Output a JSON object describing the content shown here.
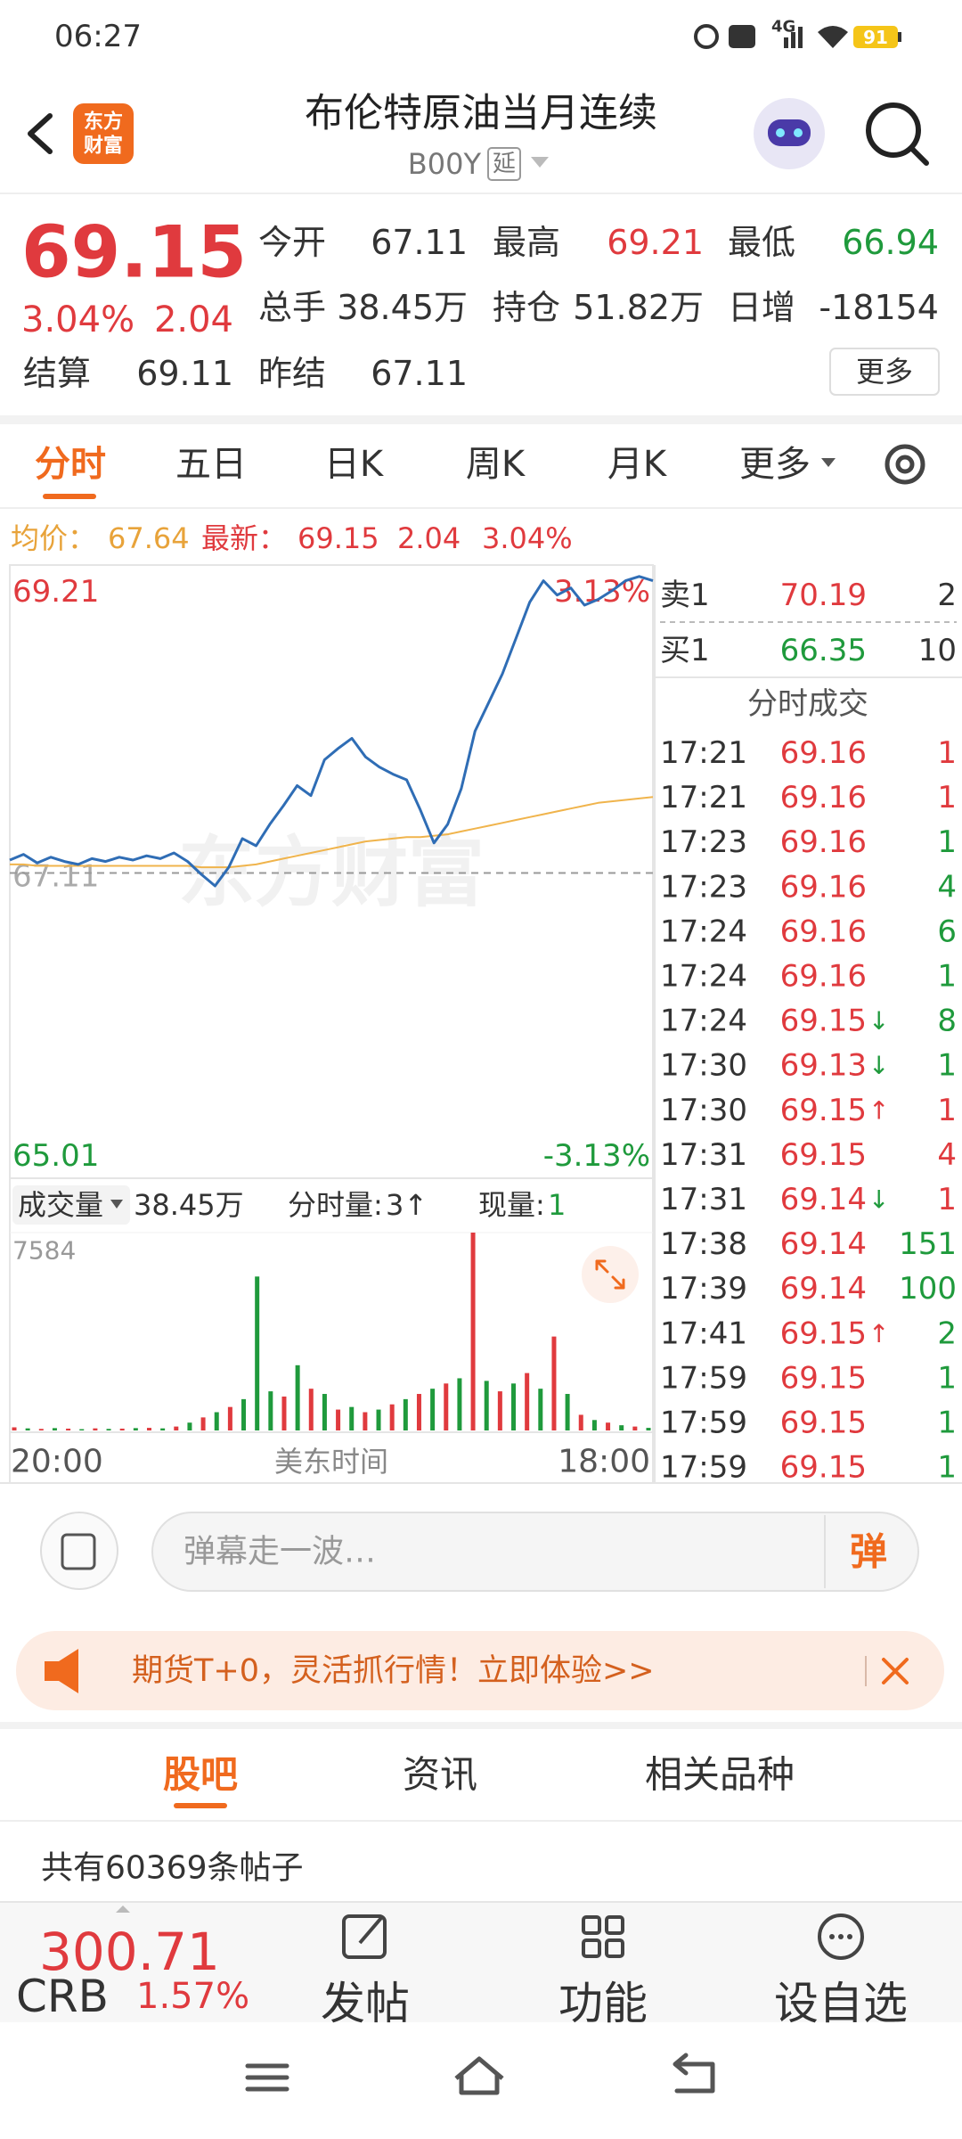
{
  "status_bar": {
    "time": "06:27",
    "network": "4G",
    "battery": "91"
  },
  "header": {
    "logo": [
      "东方",
      "财富"
    ],
    "title": "布伦特原油当月连续",
    "code": "B00Y",
    "badge": "延"
  },
  "quote": {
    "price": "69.15",
    "change_pct": "3.04%",
    "change": "2.04",
    "settle_label": "结算",
    "settle": "69.11",
    "rows": [
      [
        {
          "label": "今开",
          "value": "67.11",
          "color": "#333333"
        },
        {
          "label": "最高",
          "value": "69.21",
          "color": "#e03a3e"
        },
        {
          "label": "最低",
          "value": "66.94",
          "color": "#1f9a3c"
        }
      ],
      [
        {
          "label": "总手",
          "value": "38.45万",
          "color": "#333333"
        },
        {
          "label": "持仓",
          "value": "51.82万",
          "color": "#333333"
        },
        {
          "label": "日增",
          "value": "-18154",
          "color": "#333333"
        }
      ],
      [
        {
          "label": "昨结",
          "value": "67.11",
          "color": "#333333"
        }
      ]
    ],
    "more": "更多"
  },
  "tabs": {
    "items": [
      "分时",
      "五日",
      "日K",
      "周K",
      "月K",
      "更多"
    ],
    "active": 0
  },
  "info_line": {
    "avg_label": "均价：",
    "avg": "67.64",
    "latest_label": "最新：",
    "latest": "69.15",
    "change": "2.04",
    "change_pct": "3.04%"
  },
  "chart_data": [
    {
      "type": "line",
      "watermark": "东方财富",
      "series": [
        {
          "color": "#2f6db5",
          "values": [
            67.2,
            67.24,
            67.18,
            67.22,
            67.19,
            67.17,
            67.21,
            67.19,
            67.22,
            67.2,
            67.23,
            67.21,
            67.25,
            67.19,
            67.1,
            67.02,
            67.15,
            67.35,
            67.3,
            67.45,
            67.58,
            67.72,
            67.65,
            67.9,
            67.98,
            68.05,
            67.92,
            67.85,
            67.8,
            67.76,
            67.55,
            67.32,
            67.45,
            67.7,
            68.1,
            68.3,
            68.5,
            68.75,
            69.0,
            69.15,
            69.05,
            69.1,
            68.98,
            69.02,
            69.08,
            69.15,
            69.18,
            69.15
          ]
        },
        {
          "color": "#f0b44c",
          "values": [
            67.17,
            67.17,
            67.16,
            67.16,
            67.16,
            67.16,
            67.16,
            67.16,
            67.16,
            67.16,
            67.16,
            67.16,
            67.16,
            67.16,
            67.15,
            67.15,
            67.15,
            67.16,
            67.17,
            67.19,
            67.21,
            67.23,
            67.25,
            67.27,
            67.29,
            67.31,
            67.33,
            67.34,
            67.35,
            67.36,
            67.36,
            67.37,
            67.38,
            67.4,
            67.42,
            67.44,
            67.46,
            67.48,
            67.5,
            67.52,
            67.54,
            67.56,
            67.58,
            67.6,
            67.61,
            67.62,
            67.63,
            67.64
          ]
        }
      ],
      "ylim": [
        65.01,
        69.21
      ],
      "yticks": [
        65.01,
        67.11,
        69.21
      ],
      "y2lim": [
        -3.13,
        3.13
      ],
      "y2ticks": [
        {
          "value": -3.13,
          "label": "-3.13%"
        },
        {
          "value": 3.13,
          "label": "3.13%"
        }
      ],
      "xlim": [
        0,
        47
      ],
      "xticks": [
        {
          "value": 0,
          "label": "20:00"
        },
        {
          "value": 47,
          "label": "18:00"
        }
      ],
      "xlabel": "美东时间"
    },
    {
      "type": "bar",
      "values": [
        120,
        80,
        60,
        90,
        70,
        50,
        80,
        60,
        70,
        90,
        100,
        80,
        150,
        300,
        500,
        700,
        900,
        1200,
        5900,
        1500,
        1300,
        2500,
        1600,
        1400,
        800,
        900,
        700,
        800,
        1000,
        1200,
        1400,
        1600,
        1800,
        2000,
        7584,
        1900,
        1500,
        1800,
        2200,
        1600,
        3600,
        1400,
        600,
        400,
        300,
        200,
        150,
        100
      ],
      "up": [
        true,
        false,
        true,
        false,
        true,
        false,
        true,
        false,
        true,
        false,
        true,
        false,
        true,
        false,
        true,
        false,
        true,
        false,
        false,
        false,
        true,
        false,
        true,
        false,
        true,
        false,
        true,
        false,
        true,
        false,
        true,
        false,
        true,
        false,
        true,
        false,
        true,
        false,
        true,
        false,
        true,
        false,
        true,
        false,
        true,
        false,
        true,
        false
      ],
      "colors": {
        "up": "#e03a3e",
        "down": "#1f9a3c"
      },
      "ylim": [
        0,
        7584
      ],
      "yticks": [
        7584
      ]
    }
  ],
  "volume_header": {
    "selector": "成交量",
    "total": "38.45万",
    "tick_label": "分时量:",
    "tick_value": "3↑",
    "now_label": "现量:",
    "now_value": "1"
  },
  "order_book": [
    {
      "label": "卖1",
      "price": "70.19",
      "volume": "2",
      "price_color": "#e03a3e"
    },
    {
      "label": "买1",
      "price": "66.35",
      "volume": "10",
      "price_color": "#1f9a3c"
    }
  ],
  "trades_title": "分时成交",
  "trades": [
    {
      "time": "17:21",
      "price": "69.16",
      "volume": "1",
      "volume_color": "#e03a3e"
    },
    {
      "time": "17:21",
      "price": "69.16",
      "volume": "1",
      "volume_color": "#e03a3e"
    },
    {
      "time": "17:23",
      "price": "69.16",
      "volume": "1",
      "volume_color": "#1f9a3c"
    },
    {
      "time": "17:23",
      "price": "69.16",
      "volume": "4",
      "volume_color": "#1f9a3c"
    },
    {
      "time": "17:24",
      "price": "69.16",
      "volume": "6",
      "volume_color": "#1f9a3c"
    },
    {
      "time": "17:24",
      "price": "69.16",
      "volume": "1",
      "volume_color": "#1f9a3c"
    },
    {
      "time": "17:24",
      "price": "69.15",
      "arrow": {
        "text": "↓",
        "color": "#1f9a3c"
      },
      "volume": "8",
      "volume_color": "#1f9a3c"
    },
    {
      "time": "17:30",
      "price": "69.13",
      "arrow": {
        "text": "↓",
        "color": "#1f9a3c"
      },
      "volume": "1",
      "volume_color": "#1f9a3c"
    },
    {
      "time": "17:30",
      "price": "69.15",
      "arrow": {
        "text": "↑",
        "color": "#e03a3e"
      },
      "volume": "1",
      "volume_color": "#e03a3e"
    },
    {
      "time": "17:31",
      "price": "69.15",
      "volume": "4",
      "volume_color": "#e03a3e"
    },
    {
      "time": "17:31",
      "price": "69.14",
      "arrow": {
        "text": "↓",
        "color": "#1f9a3c"
      },
      "volume": "1",
      "volume_color": "#e03a3e"
    },
    {
      "time": "17:38",
      "price": "69.14",
      "volume": "151",
      "volume_color": "#1f9a3c"
    },
    {
      "time": "17:39",
      "price": "69.14",
      "volume": "100",
      "volume_color": "#1f9a3c"
    },
    {
      "time": "17:41",
      "price": "69.15",
      "arrow": {
        "text": "↑",
        "color": "#e03a3e"
      },
      "volume": "2",
      "volume_color": "#1f9a3c"
    },
    {
      "time": "17:59",
      "price": "69.15",
      "volume": "1",
      "volume_color": "#1f9a3c"
    },
    {
      "time": "17:59",
      "price": "69.15",
      "volume": "1",
      "volume_color": "#1f9a3c"
    },
    {
      "time": "17:59",
      "price": "69.15",
      "volume": "1",
      "volume_color": "#1f9a3c"
    }
  ],
  "comment_bar": {
    "placeholder": "弹幕走一波…",
    "button": "弹"
  },
  "banner": {
    "text": "期货T+0，灵活抓行情！立即体验>>"
  },
  "section_tabs": {
    "items": [
      "股吧",
      "资讯",
      "相关品种"
    ],
    "active": 0
  },
  "posts": {
    "count_text": "共有60369条帖子"
  },
  "bottom_bar": {
    "index_value": "300.71",
    "index_name": "CRB",
    "index_pct": "1.57%",
    "actions": [
      "发帖",
      "功能",
      "设自选"
    ]
  }
}
